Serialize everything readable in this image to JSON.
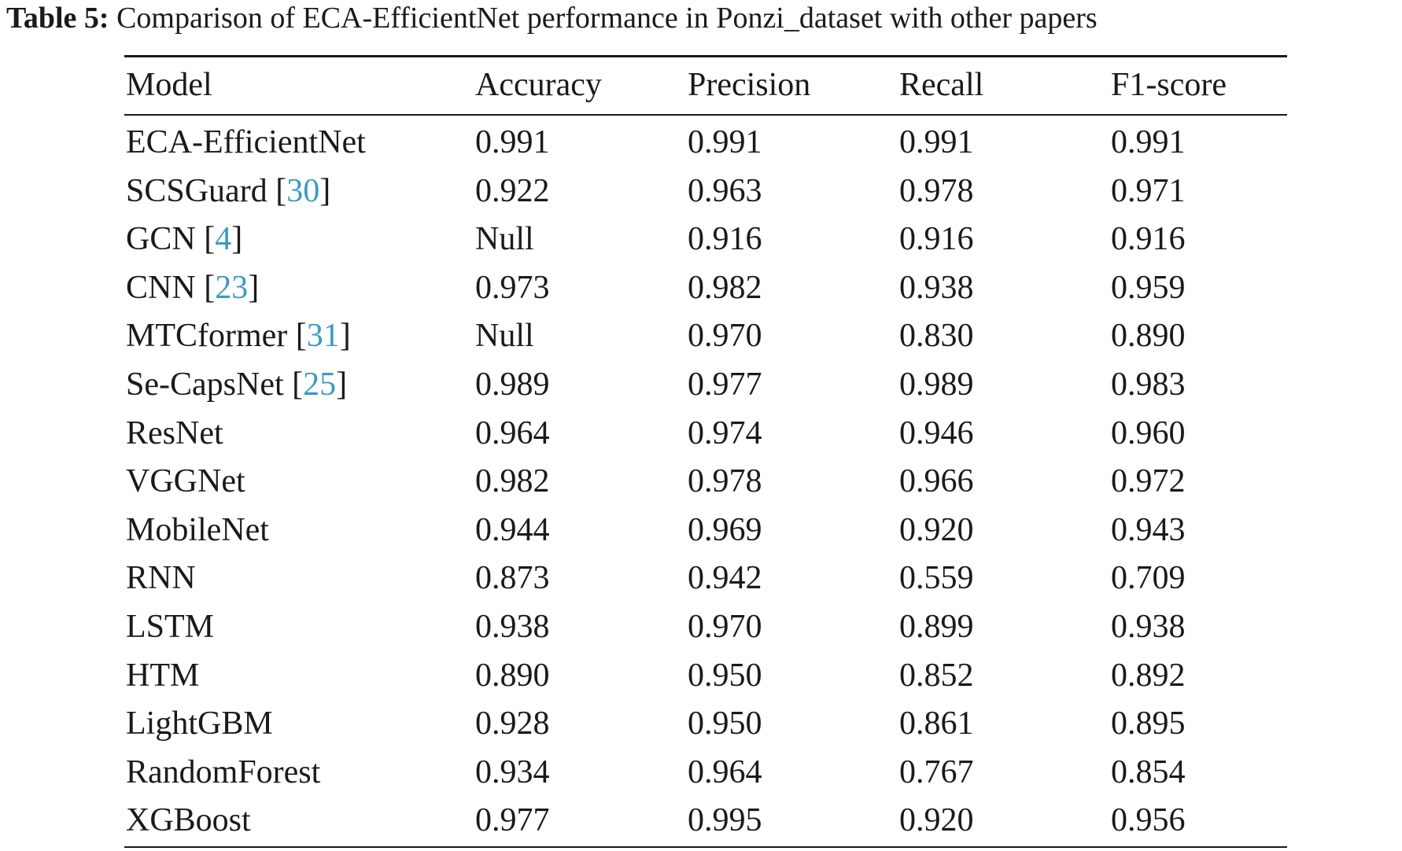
{
  "caption": {
    "label": "Table 5:",
    "text": "Comparison of ECA-EfficientNet performance in Ponzi_dataset with other papers"
  },
  "table": {
    "headers": [
      "Model",
      "Accuracy",
      "Precision",
      "Recall",
      "F1-score"
    ],
    "rows": [
      {
        "model": "ECA-EfficientNet",
        "ref": "",
        "accuracy": "0.991",
        "precision": "0.991",
        "recall": "0.991",
        "f1": "0.991"
      },
      {
        "model": "SCSGuard",
        "ref": "30",
        "accuracy": "0.922",
        "precision": "0.963",
        "recall": "0.978",
        "f1": "0.971"
      },
      {
        "model": "GCN",
        "ref": "4",
        "accuracy": "Null",
        "precision": "0.916",
        "recall": "0.916",
        "f1": "0.916"
      },
      {
        "model": "CNN",
        "ref": "23",
        "accuracy": "0.973",
        "precision": "0.982",
        "recall": "0.938",
        "f1": "0.959"
      },
      {
        "model": "MTCformer",
        "ref": "31",
        "accuracy": "Null",
        "precision": "0.970",
        "recall": "0.830",
        "f1": "0.890"
      },
      {
        "model": "Se-CapsNet",
        "ref": "25",
        "accuracy": "0.989",
        "precision": "0.977",
        "recall": "0.989",
        "f1": "0.983"
      },
      {
        "model": "ResNet",
        "ref": "",
        "accuracy": "0.964",
        "precision": "0.974",
        "recall": "0.946",
        "f1": "0.960"
      },
      {
        "model": "VGGNet",
        "ref": "",
        "accuracy": "0.982",
        "precision": "0.978",
        "recall": "0.966",
        "f1": "0.972"
      },
      {
        "model": "MobileNet",
        "ref": "",
        "accuracy": "0.944",
        "precision": "0.969",
        "recall": "0.920",
        "f1": "0.943"
      },
      {
        "model": "RNN",
        "ref": "",
        "accuracy": "0.873",
        "precision": "0.942",
        "recall": "0.559",
        "f1": "0.709"
      },
      {
        "model": "LSTM",
        "ref": "",
        "accuracy": "0.938",
        "precision": "0.970",
        "recall": "0.899",
        "f1": "0.938"
      },
      {
        "model": "HTM",
        "ref": "",
        "accuracy": "0.890",
        "precision": "0.950",
        "recall": "0.852",
        "f1": "0.892"
      },
      {
        "model": "LightGBM",
        "ref": "",
        "accuracy": "0.928",
        "precision": "0.950",
        "recall": "0.861",
        "f1": "0.895"
      },
      {
        "model": "RandomForest",
        "ref": "",
        "accuracy": "0.934",
        "precision": "0.964",
        "recall": "0.767",
        "f1": "0.854"
      },
      {
        "model": "XGBoost",
        "ref": "",
        "accuracy": "0.977",
        "precision": "0.995",
        "recall": "0.920",
        "f1": "0.956"
      }
    ]
  },
  "colors": {
    "text": "#1a1a1a",
    "citation_link": "#3a9bc4",
    "background": "#ffffff"
  }
}
